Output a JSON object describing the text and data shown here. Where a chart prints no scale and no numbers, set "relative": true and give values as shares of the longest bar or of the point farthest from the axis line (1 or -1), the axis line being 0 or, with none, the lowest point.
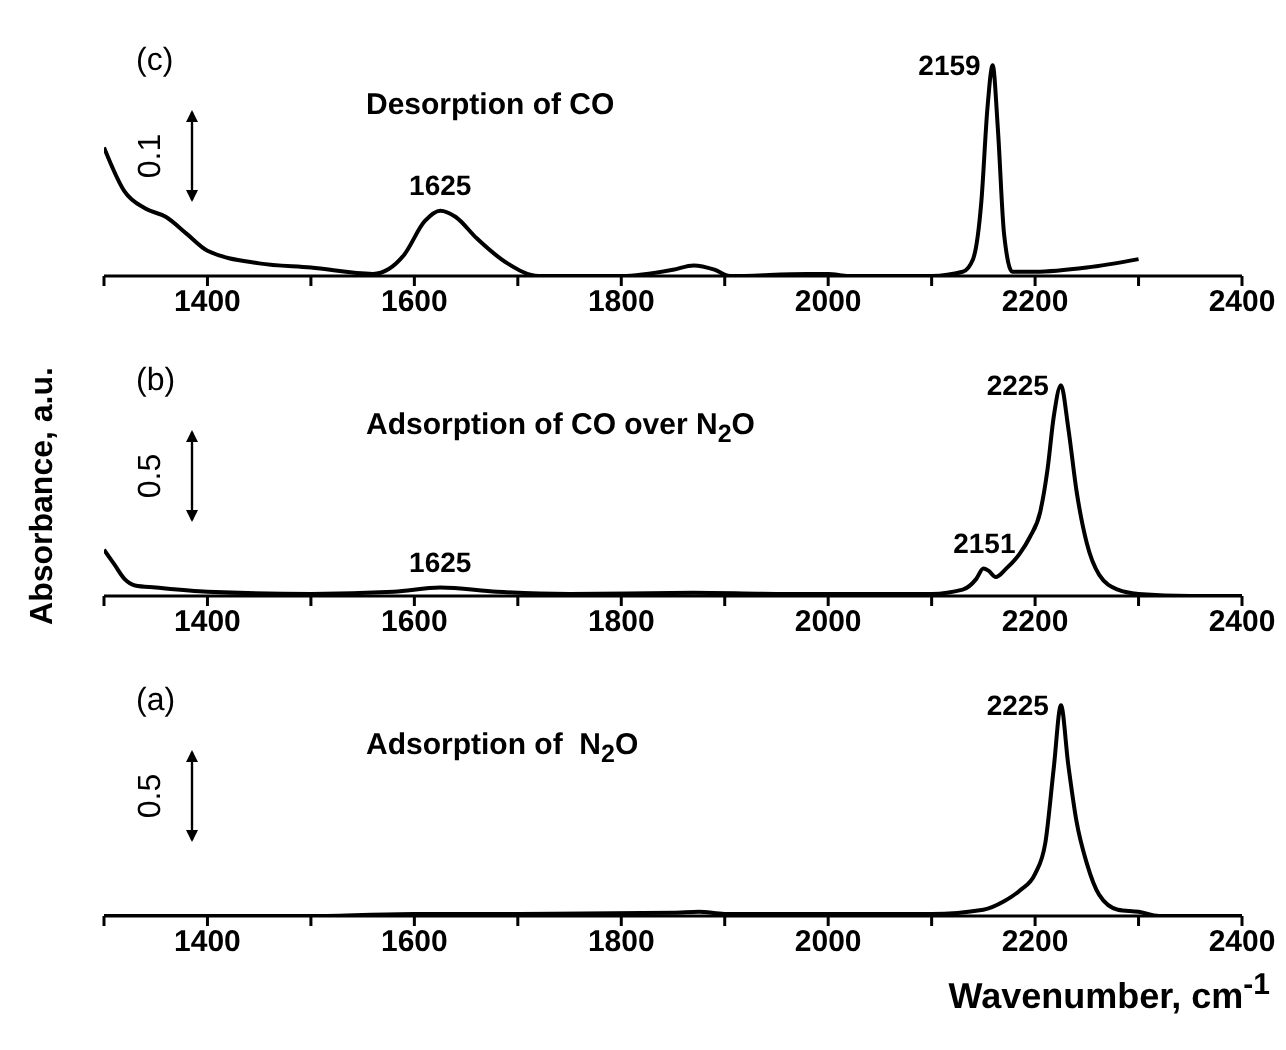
{
  "chart_data": [
    {
      "type": "line",
      "title": "Desorption of CO",
      "relative": true,
      "xlim": [
        1300,
        2400
      ],
      "xticks": [
        {
          "value": 1300,
          "label": null
        },
        1400,
        {
          "value": 1500,
          "label": null
        },
        1600,
        {
          "value": 1700,
          "label": null
        },
        1800,
        {
          "value": 1900,
          "label": null
        },
        2000,
        {
          "value": 2100,
          "label": null
        },
        2200,
        {
          "value": 2300,
          "label": null
        },
        2400
      ],
      "marker": "none",
      "line_style": "solid",
      "annotations": [
        "(c)",
        "0.1",
        {
          "text": "1625",
          "x": 1625,
          "y": 0.31
        },
        {
          "text": "2159",
          "x": 2159,
          "y": 1
        }
      ],
      "series": [
        {
          "color": "#000000",
          "x": [
            1300,
            1320,
            1340,
            1360,
            1380,
            1400,
            1450,
            1500,
            1560,
            1590,
            1610,
            1625,
            1640,
            1660,
            1690,
            1720,
            1800,
            1850,
            1870,
            1890,
            1905,
            1980,
            2000,
            2020,
            2100,
            2130,
            2140,
            2148,
            2154,
            2159,
            2164,
            2170,
            2178,
            2200,
            2250,
            2300
          ],
          "values": [
            0.61,
            0.4,
            0.32,
            0.28,
            0.2,
            0.12,
            0.06,
            0.04,
            0.01,
            0.1,
            0.26,
            0.31,
            0.28,
            0.18,
            0.06,
            0.0,
            0.0,
            0.03,
            0.05,
            0.03,
            0.0,
            0.01,
            0.01,
            0.0,
            0.0,
            0.02,
            0.08,
            0.35,
            0.8,
            1,
            0.7,
            0.2,
            0.02,
            0.02,
            0.04,
            0.08
          ]
        }
      ]
    },
    {
      "type": "line",
      "title": "Adsorption of CO over N$_{2}$O",
      "ylabel": "Absorbance, a.u.",
      "relative": true,
      "xlim": [
        1300,
        2400
      ],
      "xticks": [
        {
          "value": 1300,
          "label": null
        },
        1400,
        {
          "value": 1500,
          "label": null
        },
        1600,
        {
          "value": 1700,
          "label": null
        },
        1800,
        {
          "value": 1900,
          "label": null
        },
        2000,
        {
          "value": 2100,
          "label": null
        },
        2200,
        {
          "value": 2300,
          "label": null
        },
        2400
      ],
      "marker": "none",
      "line_style": "solid",
      "annotations": [
        "(b)",
        "0.5",
        {
          "text": "1625",
          "x": 1625,
          "y": 0.04
        },
        {
          "text": "2151",
          "x": 2151,
          "y": 0.13
        },
        {
          "text": "2225",
          "x": 2225,
          "y": 1
        }
      ],
      "series": [
        {
          "color": "#000000",
          "x": [
            1300,
            1310,
            1320,
            1330,
            1350,
            1400,
            1500,
            1580,
            1625,
            1680,
            1750,
            1870,
            1950,
            2050,
            2100,
            2130,
            2143,
            2150,
            2155,
            2162,
            2172,
            2185,
            2195,
            2205,
            2212,
            2218,
            2225,
            2232,
            2240,
            2250,
            2262,
            2280,
            2300,
            2350,
            2400
          ],
          "values": [
            0.22,
            0.15,
            0.08,
            0.05,
            0.04,
            0.02,
            0.01,
            0.02,
            0.04,
            0.02,
            0.01,
            0.015,
            0.01,
            0.01,
            0.01,
            0.03,
            0.08,
            0.13,
            0.12,
            0.09,
            0.13,
            0.2,
            0.28,
            0.4,
            0.6,
            0.85,
            1,
            0.8,
            0.5,
            0.25,
            0.1,
            0.03,
            0.01,
            0.0,
            0.0
          ]
        }
      ]
    },
    {
      "type": "line",
      "title": "Adsorption of  N$_{2}$O",
      "xlabel": "Wavenumber, cm$^{-1}$",
      "relative": true,
      "xlim": [
        1300,
        2400
      ],
      "xticks": [
        {
          "value": 1300,
          "label": null
        },
        1400,
        {
          "value": 1500,
          "label": null
        },
        1600,
        {
          "value": 1700,
          "label": null
        },
        1800,
        {
          "value": 1900,
          "label": null
        },
        2000,
        {
          "value": 2100,
          "label": null
        },
        2200,
        {
          "value": 2300,
          "label": null
        },
        2400
      ],
      "marker": "none",
      "line_style": "solid",
      "annotations": [
        "(a)",
        "0.5",
        {
          "text": "2225",
          "x": 2225,
          "y": 1
        }
      ],
      "series": [
        {
          "color": "#000000",
          "x": [
            1300,
            1500,
            1600,
            1700,
            1850,
            1875,
            1900,
            2000,
            2100,
            2150,
            2170,
            2185,
            2200,
            2210,
            2218,
            2225,
            2232,
            2240,
            2250,
            2262,
            2280,
            2300,
            2320,
            2400
          ],
          "values": [
            0.0,
            0.0,
            0.01,
            0.01,
            0.015,
            0.02,
            0.01,
            0.01,
            0.01,
            0.03,
            0.07,
            0.12,
            0.2,
            0.35,
            0.7,
            1,
            0.72,
            0.45,
            0.25,
            0.1,
            0.03,
            0.02,
            0.0,
            0.0
          ]
        }
      ]
    }
  ]
}
